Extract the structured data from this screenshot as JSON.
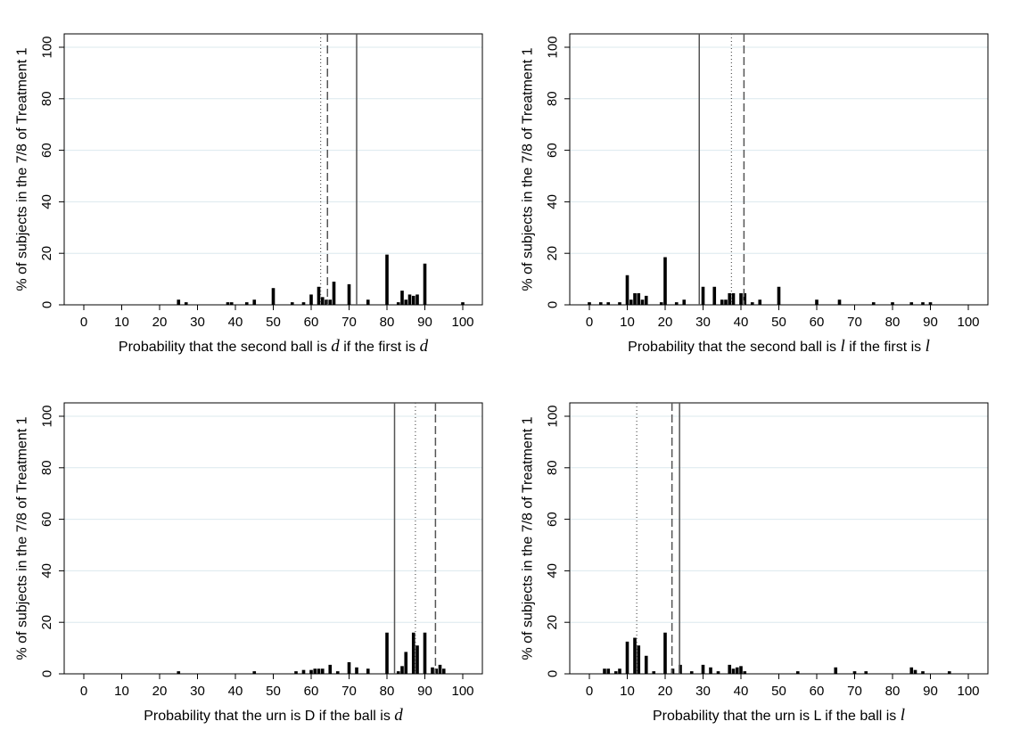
{
  "chart_data": [
    {
      "type": "bar",
      "ylabel": "% of subjects in the 7/8 of Treatment 1",
      "xlabel": {
        "pre": "Probability that the second ball is ",
        "m1": "d",
        "mid": " if the first is ",
        "m2": "d"
      },
      "xlim": [
        0,
        100
      ],
      "ylim": [
        0,
        100
      ],
      "xticks": [
        0,
        10,
        20,
        30,
        40,
        50,
        60,
        70,
        80,
        90,
        100
      ],
      "yticks": [
        0,
        20,
        40,
        60,
        80,
        100
      ],
      "bars": [
        {
          "x": 25,
          "y": 2
        },
        {
          "x": 27,
          "y": 1
        },
        {
          "x": 38,
          "y": 1
        },
        {
          "x": 39,
          "y": 1
        },
        {
          "x": 43,
          "y": 1
        },
        {
          "x": 45,
          "y": 2
        },
        {
          "x": 50,
          "y": 6.5
        },
        {
          "x": 55,
          "y": 1
        },
        {
          "x": 58,
          "y": 1
        },
        {
          "x": 60,
          "y": 4
        },
        {
          "x": 62,
          "y": 7
        },
        {
          "x": 63,
          "y": 3
        },
        {
          "x": 64,
          "y": 2
        },
        {
          "x": 65,
          "y": 2
        },
        {
          "x": 66,
          "y": 9
        },
        {
          "x": 70,
          "y": 8
        },
        {
          "x": 75,
          "y": 2
        },
        {
          "x": 80,
          "y": 19.5
        },
        {
          "x": 83,
          "y": 1
        },
        {
          "x": 84,
          "y": 5.5
        },
        {
          "x": 85,
          "y": 2
        },
        {
          "x": 86,
          "y": 4
        },
        {
          "x": 87,
          "y": 3.5
        },
        {
          "x": 88,
          "y": 4
        },
        {
          "x": 90,
          "y": 16
        },
        {
          "x": 100,
          "y": 1
        }
      ],
      "vlines": [
        {
          "x": 62.5,
          "style": "dotted"
        },
        {
          "x": 64.3,
          "style": "dashed"
        },
        {
          "x": 72,
          "style": "solid"
        }
      ]
    },
    {
      "type": "bar",
      "ylabel": "% of subjects in the 7/8 of Treatment 1",
      "xlabel": {
        "pre": "Probability that the second ball is ",
        "m1": "l",
        "mid": " if the first is ",
        "m2": "l"
      },
      "xlim": [
        0,
        100
      ],
      "ylim": [
        0,
        100
      ],
      "xticks": [
        0,
        10,
        20,
        30,
        40,
        50,
        60,
        70,
        80,
        90,
        100
      ],
      "yticks": [
        0,
        20,
        40,
        60,
        80,
        100
      ],
      "bars": [
        {
          "x": 0,
          "y": 1
        },
        {
          "x": 3,
          "y": 1
        },
        {
          "x": 5,
          "y": 1
        },
        {
          "x": 8,
          "y": 1
        },
        {
          "x": 10,
          "y": 11.5
        },
        {
          "x": 11,
          "y": 2
        },
        {
          "x": 12,
          "y": 4.5
        },
        {
          "x": 13,
          "y": 4.5
        },
        {
          "x": 14,
          "y": 2
        },
        {
          "x": 15,
          "y": 3.5
        },
        {
          "x": 19,
          "y": 1
        },
        {
          "x": 20,
          "y": 18.5
        },
        {
          "x": 23,
          "y": 1
        },
        {
          "x": 25,
          "y": 2
        },
        {
          "x": 30,
          "y": 7
        },
        {
          "x": 33,
          "y": 7
        },
        {
          "x": 35,
          "y": 2
        },
        {
          "x": 36,
          "y": 2
        },
        {
          "x": 37,
          "y": 4.5
        },
        {
          "x": 38,
          "y": 4.5
        },
        {
          "x": 40,
          "y": 4.5
        },
        {
          "x": 41,
          "y": 4.5
        },
        {
          "x": 43,
          "y": 1
        },
        {
          "x": 45,
          "y": 2
        },
        {
          "x": 50,
          "y": 7
        },
        {
          "x": 60,
          "y": 2
        },
        {
          "x": 66,
          "y": 2
        },
        {
          "x": 75,
          "y": 1
        },
        {
          "x": 80,
          "y": 1
        },
        {
          "x": 85,
          "y": 1
        },
        {
          "x": 88,
          "y": 1
        },
        {
          "x": 90,
          "y": 1
        }
      ],
      "vlines": [
        {
          "x": 29,
          "style": "solid"
        },
        {
          "x": 37.5,
          "style": "dotted"
        },
        {
          "x": 40.8,
          "style": "dashed"
        }
      ]
    },
    {
      "type": "bar",
      "ylabel": "% of subjects in the 7/8 of Treatment 1",
      "xlabel": {
        "pre": "Probability that the urn is D if the ball is ",
        "m1": "d",
        "mid": "",
        "m2": ""
      },
      "xlim": [
        0,
        100
      ],
      "ylim": [
        0,
        100
      ],
      "xticks": [
        0,
        10,
        20,
        30,
        40,
        50,
        60,
        70,
        80,
        90,
        100
      ],
      "yticks": [
        0,
        20,
        40,
        60,
        80,
        100
      ],
      "bars": [
        {
          "x": 25,
          "y": 1
        },
        {
          "x": 45,
          "y": 1
        },
        {
          "x": 56,
          "y": 1
        },
        {
          "x": 58,
          "y": 1.5
        },
        {
          "x": 60,
          "y": 1.5
        },
        {
          "x": 61,
          "y": 2
        },
        {
          "x": 62,
          "y": 2
        },
        {
          "x": 63,
          "y": 2
        },
        {
          "x": 65,
          "y": 3.5
        },
        {
          "x": 67,
          "y": 1
        },
        {
          "x": 70,
          "y": 4.5
        },
        {
          "x": 72,
          "y": 2.5
        },
        {
          "x": 75,
          "y": 2
        },
        {
          "x": 80,
          "y": 16
        },
        {
          "x": 83,
          "y": 1
        },
        {
          "x": 84,
          "y": 3
        },
        {
          "x": 85,
          "y": 8.5
        },
        {
          "x": 87,
          "y": 16
        },
        {
          "x": 88,
          "y": 11
        },
        {
          "x": 90,
          "y": 16
        },
        {
          "x": 92,
          "y": 2.5
        },
        {
          "x": 93,
          "y": 2
        },
        {
          "x": 94,
          "y": 3.5
        },
        {
          "x": 95,
          "y": 2
        }
      ],
      "vlines": [
        {
          "x": 82,
          "style": "solid"
        },
        {
          "x": 87.5,
          "style": "dotted"
        },
        {
          "x": 92.8,
          "style": "dashed"
        }
      ]
    },
    {
      "type": "bar",
      "ylabel": "% of subjects in the 7/8 of Treatment 1",
      "xlabel": {
        "pre": "Probability that the urn is L if the ball is ",
        "m1": "l",
        "mid": "",
        "m2": ""
      },
      "xlim": [
        0,
        100
      ],
      "ylim": [
        0,
        100
      ],
      "xticks": [
        0,
        10,
        20,
        30,
        40,
        50,
        60,
        70,
        80,
        90,
        100
      ],
      "yticks": [
        0,
        20,
        40,
        60,
        80,
        100
      ],
      "bars": [
        {
          "x": 4,
          "y": 2
        },
        {
          "x": 5,
          "y": 2
        },
        {
          "x": 7,
          "y": 1
        },
        {
          "x": 8,
          "y": 2
        },
        {
          "x": 10,
          "y": 12.5
        },
        {
          "x": 12,
          "y": 14
        },
        {
          "x": 13,
          "y": 11
        },
        {
          "x": 15,
          "y": 7
        },
        {
          "x": 17,
          "y": 1
        },
        {
          "x": 20,
          "y": 16
        },
        {
          "x": 22,
          "y": 2
        },
        {
          "x": 24,
          "y": 3.5
        },
        {
          "x": 27,
          "y": 1
        },
        {
          "x": 30,
          "y": 3.5
        },
        {
          "x": 32,
          "y": 2.5
        },
        {
          "x": 34,
          "y": 1
        },
        {
          "x": 37,
          "y": 3.5
        },
        {
          "x": 38,
          "y": 2
        },
        {
          "x": 39,
          "y": 2.5
        },
        {
          "x": 40,
          "y": 3
        },
        {
          "x": 41,
          "y": 1
        },
        {
          "x": 55,
          "y": 1
        },
        {
          "x": 65,
          "y": 2.5
        },
        {
          "x": 70,
          "y": 1
        },
        {
          "x": 73,
          "y": 1
        },
        {
          "x": 85,
          "y": 2.5
        },
        {
          "x": 86,
          "y": 1.5
        },
        {
          "x": 88,
          "y": 1
        },
        {
          "x": 95,
          "y": 1
        }
      ],
      "vlines": [
        {
          "x": 12.5,
          "style": "dotted"
        },
        {
          "x": 21.8,
          "style": "dashed"
        },
        {
          "x": 23.8,
          "style": "solid"
        }
      ]
    }
  ]
}
